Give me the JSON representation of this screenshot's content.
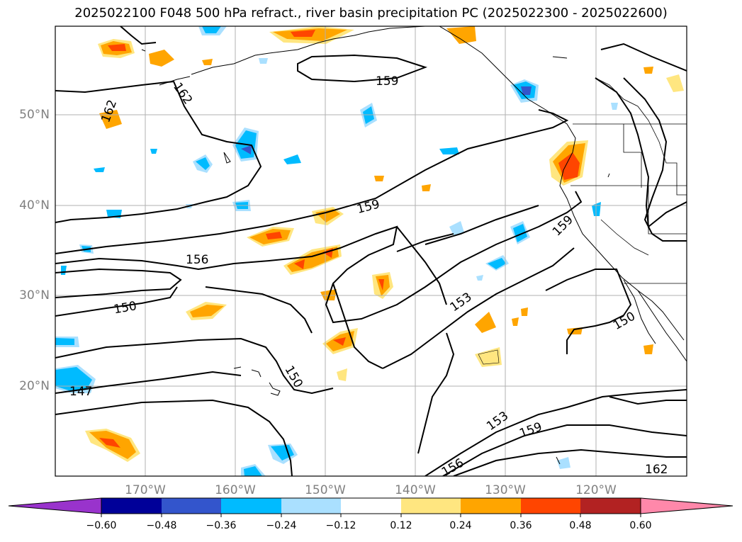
{
  "title": "2025022100 F048 500 hPa refract., river basin precipitation PC (2025022300 - 2025022600)",
  "lat_labels": [
    "50°N",
    "40°N",
    "30°N",
    "20°N"
  ],
  "lon_labels": [
    "170°W",
    "160°W",
    "150°W",
    "140°W",
    "130°W",
    "120°W"
  ],
  "contour_labels": [
    "159",
    "162",
    "162",
    "159",
    "156",
    "150",
    "153",
    "159",
    "150",
    "150",
    "147",
    "153",
    "159",
    "156",
    "162"
  ],
  "colorbar": {
    "ticks": [
      "−0.60",
      "−0.48",
      "−0.36",
      "−0.24",
      "−0.12",
      "0.12",
      "0.24",
      "0.36",
      "0.48",
      "0.60"
    ],
    "colors": [
      "#9933cc",
      "#000099",
      "#3355cc",
      "#00bbff",
      "#aae0ff",
      "#ffffff",
      "#ffe680",
      "#ffa500",
      "#ff4500",
      "#b22222",
      "#ff88aa"
    ]
  },
  "colors": {
    "contour": "#000000",
    "grid": "#b0b0b0",
    "label": "#808080"
  }
}
